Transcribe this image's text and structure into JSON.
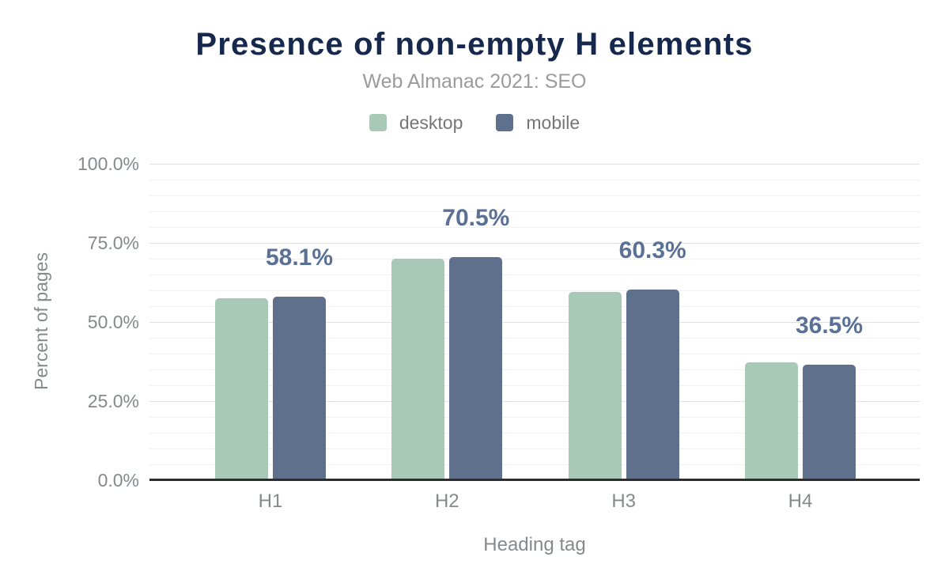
{
  "header": {
    "title": "Presence of non-empty H elements",
    "subtitle": "Web Almanac 2021: SEO"
  },
  "legend": [
    {
      "label": "desktop",
      "color": "#a8c9b8"
    },
    {
      "label": "mobile",
      "color": "#5f708c"
    }
  ],
  "chart_data": {
    "type": "bar",
    "title": "Presence of non-empty H elements",
    "subtitle": "Web Almanac 2021: SEO",
    "categories": [
      "H1",
      "H2",
      "H3",
      "H4"
    ],
    "series": [
      {
        "name": "desktop",
        "color": "#a8c9b8",
        "values": [
          57.5,
          70.1,
          59.5,
          37.3
        ]
      },
      {
        "name": "mobile",
        "color": "#5f708c",
        "values": [
          58.1,
          70.5,
          60.3,
          36.5
        ]
      }
    ],
    "annotations": [
      "58.1%",
      "70.5%",
      "60.3%",
      "36.5%"
    ],
    "annotation_series": "mobile",
    "xlabel": "Heading tag",
    "ylabel": "Percent of pages",
    "ylim": [
      0,
      100
    ],
    "ytick_labels": [
      "0.0%",
      "25.0%",
      "50.0%",
      "75.0%",
      "100.0%"
    ],
    "ytick_values": [
      0,
      25,
      50,
      75,
      100
    ],
    "minor_grid_step": 5,
    "grid": true,
    "legend_position": "top"
  },
  "colors": {
    "title_text": "#16294d",
    "subtitle_text": "#9b9b9b",
    "legend_text": "#757575",
    "axis_text": "#85898c",
    "annotation_text": "#5a7195",
    "axis_line": "#2d2d2d",
    "grid_major": "#e2e2e2",
    "grid_minor": "#f2f2f2"
  }
}
